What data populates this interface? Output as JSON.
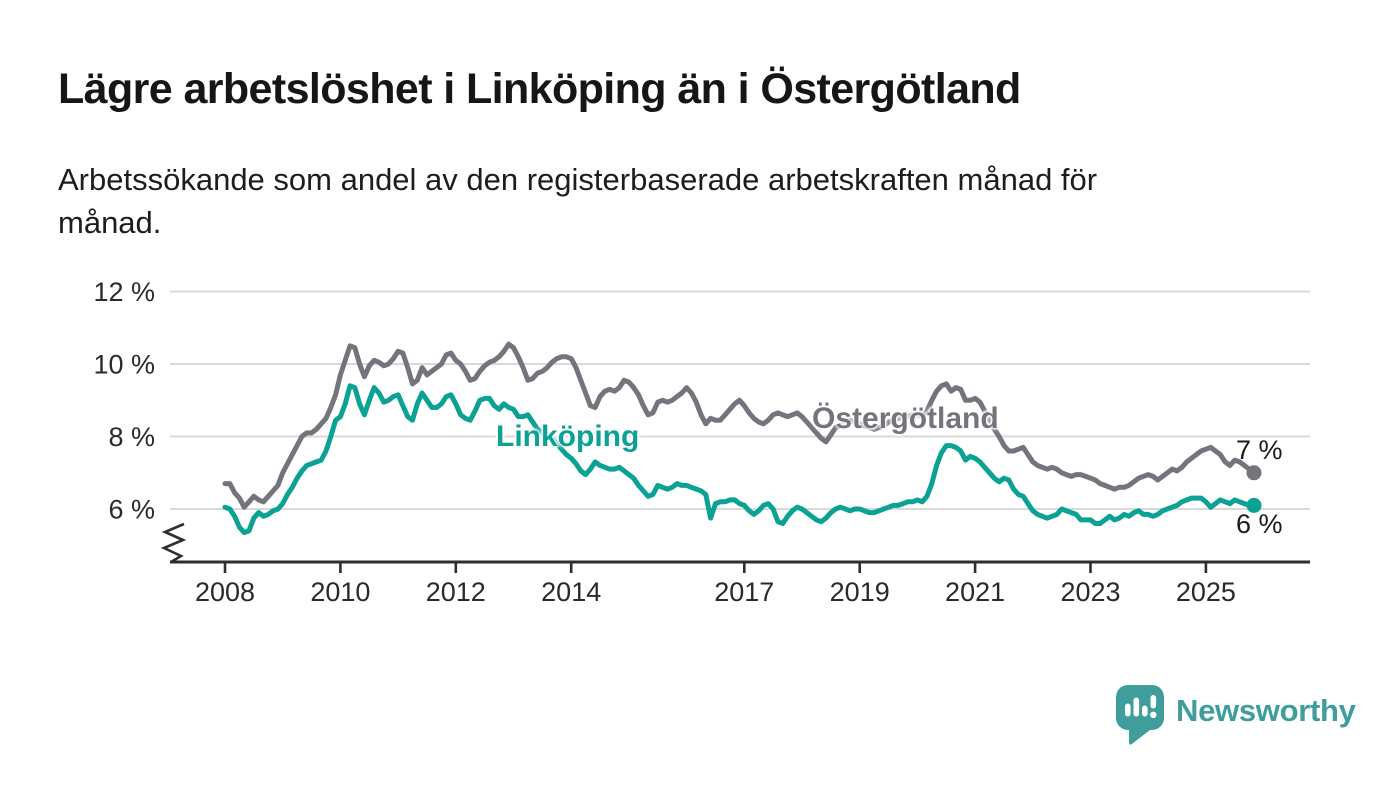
{
  "chart_data": {
    "type": "line",
    "title": "Lägre arbetslöshet i Linköping än i Östergötland",
    "subtitle_lines": [
      "Arbetssökande som andel av den registerbaserade arbetskraften månad för",
      "månad."
    ],
    "unit": "%",
    "frequency": "monthly",
    "start": "2008-01",
    "end": "2025-11",
    "grid": "horizontal",
    "axis_break": true,
    "ylim": [
      5,
      12.6
    ],
    "x_tick_years": [
      2008,
      2010,
      2012,
      2014,
      2017,
      2019,
      2021,
      2023,
      2025
    ],
    "y_ticks": [
      {
        "value": 6,
        "label": "6 %"
      },
      {
        "value": 8,
        "label": "8 %"
      },
      {
        "value": 10,
        "label": "10 %"
      },
      {
        "value": 12,
        "label": "12 %"
      }
    ],
    "colors": {
      "grid": "#d9d9d9",
      "axis": "#2e2e2e",
      "tick_text": "#2a2a2a"
    },
    "series": [
      {
        "name": "Östergötland",
        "color": "#74747c",
        "end_label": "7 %",
        "final_value": 7.0,
        "values": [
          6.7,
          6.7,
          6.45,
          6.3,
          6.05,
          6.2,
          6.35,
          6.25,
          6.2,
          6.35,
          6.5,
          6.65,
          7.0,
          7.25,
          7.5,
          7.75,
          8.0,
          8.1,
          8.1,
          8.2,
          8.35,
          8.5,
          8.8,
          9.15,
          9.7,
          10.1,
          10.5,
          10.45,
          10.0,
          9.65,
          9.95,
          10.1,
          10.05,
          9.95,
          10.0,
          10.15,
          10.35,
          10.3,
          9.9,
          9.45,
          9.55,
          9.9,
          9.7,
          9.8,
          9.9,
          10.0,
          10.25,
          10.3,
          10.1,
          10.0,
          9.8,
          9.55,
          9.6,
          9.8,
          9.95,
          10.05,
          10.1,
          10.2,
          10.35,
          10.55,
          10.45,
          10.2,
          9.9,
          9.55,
          9.6,
          9.75,
          9.8,
          9.9,
          10.05,
          10.15,
          10.2,
          10.2,
          10.15,
          9.9,
          9.55,
          9.2,
          8.85,
          8.8,
          9.1,
          9.25,
          9.3,
          9.25,
          9.35,
          9.55,
          9.5,
          9.35,
          9.15,
          8.85,
          8.6,
          8.65,
          8.95,
          9.0,
          8.95,
          9.0,
          9.1,
          9.2,
          9.35,
          9.2,
          8.95,
          8.6,
          8.35,
          8.5,
          8.45,
          8.45,
          8.6,
          8.75,
          8.9,
          9.0,
          8.85,
          8.65,
          8.5,
          8.4,
          8.35,
          8.45,
          8.6,
          8.65,
          8.6,
          8.55,
          8.6,
          8.65,
          8.55,
          8.4,
          8.25,
          8.1,
          7.95,
          7.85,
          8.05,
          8.25,
          8.3,
          8.4,
          8.45,
          8.4,
          8.35,
          8.3,
          8.25,
          8.2,
          8.25,
          8.3,
          8.4,
          8.45,
          8.5,
          8.55,
          8.55,
          8.6,
          8.6,
          8.55,
          8.7,
          9.0,
          9.25,
          9.4,
          9.45,
          9.25,
          9.35,
          9.3,
          9.0,
          9.0,
          9.05,
          8.95,
          8.7,
          8.45,
          8.2,
          8.0,
          7.75,
          7.6,
          7.6,
          7.65,
          7.7,
          7.5,
          7.3,
          7.2,
          7.15,
          7.1,
          7.15,
          7.1,
          7.0,
          6.95,
          6.9,
          6.95,
          6.95,
          6.9,
          6.85,
          6.8,
          6.7,
          6.65,
          6.6,
          6.55,
          6.6,
          6.6,
          6.65,
          6.75,
          6.85,
          6.9,
          6.95,
          6.9,
          6.8,
          6.9,
          7.0,
          7.1,
          7.05,
          7.15,
          7.3,
          7.4,
          7.5,
          7.6,
          7.65,
          7.7,
          7.6,
          7.5,
          7.3,
          7.2,
          7.35,
          7.3,
          7.2,
          7.1,
          7.0
        ]
      },
      {
        "name": "Linköping",
        "color": "#0ba295",
        "end_label": "6 %",
        "final_value": 6.1,
        "values": [
          6.05,
          6.0,
          5.8,
          5.5,
          5.35,
          5.4,
          5.75,
          5.9,
          5.8,
          5.85,
          5.95,
          6.0,
          6.15,
          6.4,
          6.6,
          6.85,
          7.05,
          7.2,
          7.25,
          7.3,
          7.35,
          7.6,
          8.0,
          8.45,
          8.55,
          8.9,
          9.4,
          9.35,
          8.9,
          8.6,
          9.0,
          9.35,
          9.2,
          8.95,
          9.0,
          9.1,
          9.15,
          8.85,
          8.55,
          8.45,
          8.9,
          9.2,
          9.0,
          8.8,
          8.8,
          8.9,
          9.1,
          9.15,
          8.9,
          8.6,
          8.5,
          8.45,
          8.7,
          9.0,
          9.05,
          9.05,
          8.85,
          8.75,
          8.9,
          8.8,
          8.75,
          8.55,
          8.55,
          8.6,
          8.4,
          8.2,
          8.1,
          8.05,
          7.95,
          7.8,
          7.65,
          7.5,
          7.4,
          7.25,
          7.05,
          6.95,
          7.1,
          7.3,
          7.2,
          7.15,
          7.1,
          7.1,
          7.15,
          7.05,
          6.95,
          6.85,
          6.65,
          6.5,
          6.35,
          6.4,
          6.65,
          6.6,
          6.55,
          6.6,
          6.7,
          6.65,
          6.65,
          6.6,
          6.55,
          6.5,
          6.4,
          5.75,
          6.15,
          6.2,
          6.2,
          6.25,
          6.25,
          6.15,
          6.1,
          5.95,
          5.85,
          5.95,
          6.1,
          6.15,
          6.0,
          5.65,
          5.6,
          5.8,
          5.95,
          6.05,
          6.0,
          5.9,
          5.8,
          5.7,
          5.65,
          5.75,
          5.9,
          6.0,
          6.05,
          6.0,
          5.95,
          6.0,
          6.0,
          5.95,
          5.9,
          5.9,
          5.95,
          6.0,
          6.05,
          6.1,
          6.1,
          6.15,
          6.2,
          6.2,
          6.25,
          6.2,
          6.35,
          6.7,
          7.2,
          7.55,
          7.75,
          7.75,
          7.7,
          7.6,
          7.35,
          7.45,
          7.4,
          7.3,
          7.15,
          7.0,
          6.85,
          6.75,
          6.85,
          6.8,
          6.55,
          6.4,
          6.35,
          6.15,
          5.95,
          5.85,
          5.8,
          5.75,
          5.8,
          5.85,
          6.0,
          5.95,
          5.9,
          5.85,
          5.7,
          5.7,
          5.7,
          5.6,
          5.6,
          5.7,
          5.8,
          5.7,
          5.75,
          5.85,
          5.8,
          5.9,
          5.95,
          5.85,
          5.85,
          5.8,
          5.85,
          5.95,
          6.0,
          6.05,
          6.1,
          6.2,
          6.25,
          6.3,
          6.3,
          6.3,
          6.2,
          6.05,
          6.15,
          6.25,
          6.2,
          6.15,
          6.25,
          6.2,
          6.15,
          6.1,
          6.1
        ]
      }
    ]
  },
  "footer": {
    "brand": "Newsworthy",
    "brand_color": "#3f9d9c"
  }
}
